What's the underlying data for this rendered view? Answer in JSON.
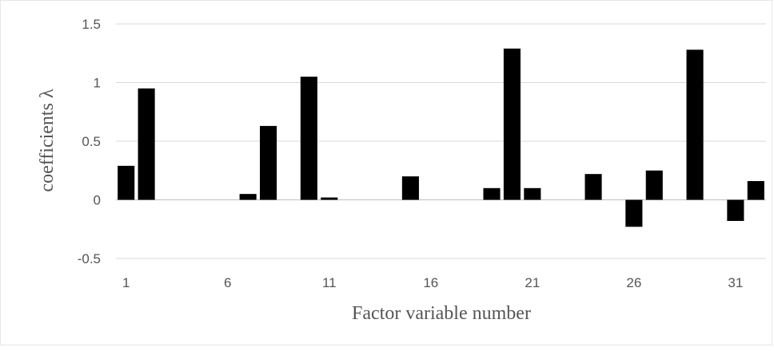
{
  "chart_data": {
    "type": "bar",
    "title": "",
    "xlabel": "Factor variable number",
    "ylabel": "coefficients λ",
    "ylim": [
      -0.5,
      1.5
    ],
    "y_ticks": [
      1.5,
      1,
      0.5,
      0,
      -0.5
    ],
    "y_tick_labels": [
      "1.5",
      "1",
      "0.5",
      "0",
      "-0.5"
    ],
    "x_tick_labels": [
      "1",
      "6",
      "11",
      "16",
      "21",
      "26",
      "31"
    ],
    "x_ticks": [
      1,
      6,
      11,
      16,
      21,
      26,
      31
    ],
    "categories": [
      1,
      2,
      3,
      4,
      5,
      6,
      7,
      8,
      9,
      10,
      11,
      12,
      13,
      14,
      15,
      16,
      17,
      18,
      19,
      20,
      21,
      22,
      23,
      24,
      25,
      26,
      27,
      28,
      29,
      30,
      31,
      32
    ],
    "values": [
      0.29,
      0.95,
      0,
      0,
      0,
      0,
      0.05,
      0.63,
      0,
      1.05,
      0.02,
      0,
      0,
      0,
      0.2,
      0,
      0,
      0,
      0.1,
      1.29,
      0.1,
      0,
      0,
      0.22,
      0,
      -0.23,
      0.25,
      0,
      1.28,
      0,
      -0.18,
      0.16
    ],
    "grid": true,
    "bar_color": "#000000",
    "grid_color": "#d9d9d9"
  }
}
